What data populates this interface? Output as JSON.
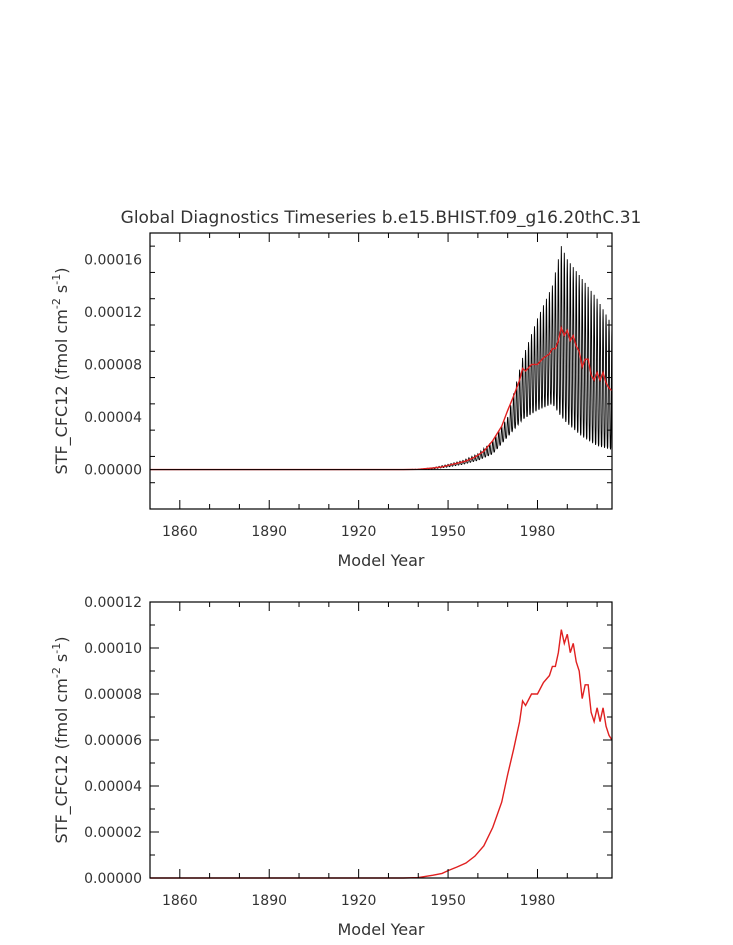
{
  "chart_data": [
    {
      "type": "line",
      "title": "Global Diagnostics Timeseries b.e15.BHIST.f09_g16.20thC.31",
      "xlabel": "Model Year",
      "ylabel": "STF_CFC12 (fmol cm^-2 s^-1)",
      "ylabel_parts": [
        "STF_CFC12 (fmol cm",
        "-2",
        " s",
        "-1",
        ")"
      ],
      "xlim": [
        1850,
        2005
      ],
      "ylim": [
        -3e-05,
        0.00018
      ],
      "xticks": [
        1860,
        1890,
        1920,
        1950,
        1980
      ],
      "xtick_labels": [
        "1860",
        "1890",
        "1920",
        "1950",
        "1980"
      ],
      "yticks": [
        0,
        4e-05,
        8e-05,
        0.00012,
        0.00016
      ],
      "ytick_labels": [
        "0.00000",
        "0.00004",
        "0.00008",
        "0.00012",
        "0.00016"
      ],
      "zero_line": true,
      "series": [
        {
          "kind": "monthly",
          "color": "#000000",
          "envelope": {
            "x": [
              1850,
              1935,
              1940,
              1945,
              1950,
              1955,
              1960,
              1965,
              1970,
              1975,
              1980,
              1985,
              1988,
              1990,
              1995,
              2000,
              2005
            ],
            "low": [
              0,
              0,
              0,
              5e-07,
              2e-06,
              4e-06,
              7e-06,
              1.2e-05,
              2.5e-05,
              3.8e-05,
              4.5e-05,
              5e-05,
              4e-05,
              3.5e-05,
              2.5e-05,
              1.8e-05,
              1.5e-05
            ],
            "high": [
              0,
              0,
              3e-07,
              1.5e-06,
              4e-06,
              7e-06,
              1.2e-05,
              2.2e-05,
              4e-05,
              8.5e-05,
              0.000115,
              0.00014,
              0.00017,
              0.00016,
              0.000145,
              0.00013,
              0.00011
            ]
          }
        },
        {
          "kind": "annual",
          "color": "#e02020",
          "x": [
            1850,
            1935,
            1940,
            1945,
            1948,
            1950,
            1953,
            1956,
            1959,
            1962,
            1965,
            1968,
            1970,
            1972,
            1974,
            1975,
            1976,
            1978,
            1980,
            1982,
            1984,
            1985,
            1986,
            1987,
            1988,
            1989,
            1990,
            1991,
            1992,
            1993,
            1994,
            1995,
            1996,
            1997,
            1998,
            1999,
            2000,
            2001,
            2002,
            2003,
            2004,
            2005
          ],
          "y": [
            0,
            0,
            2e-07,
            1.2e-06,
            2e-06,
            3.2e-06,
            4.8e-06,
            6.5e-06,
            9.5e-06,
            1.4e-05,
            2.2e-05,
            3.3e-05,
            4.5e-05,
            5.6e-05,
            6.8e-05,
            7.7e-05,
            7.5e-05,
            8e-05,
            8e-05,
            8.5e-05,
            8.8e-05,
            9.2e-05,
            9.2e-05,
            9.8e-05,
            0.000108,
            0.000102,
            0.000106,
            9.8e-05,
            0.000102,
            9.4e-05,
            9e-05,
            7.8e-05,
            8.4e-05,
            8.4e-05,
            7.2e-05,
            6.8e-05,
            7.4e-05,
            6.8e-05,
            7.4e-05,
            6.6e-05,
            6.2e-05,
            6e-05
          ]
        }
      ]
    },
    {
      "type": "line",
      "title": "",
      "xlabel": "Model Year",
      "ylabel": "STF_CFC12 (fmol cm^-2 s^-1)",
      "ylabel_parts": [
        "STF_CFC12 (fmol cm",
        "-2",
        " s",
        "-1",
        ")"
      ],
      "xlim": [
        1850,
        2005
      ],
      "ylim": [
        0,
        0.00012
      ],
      "xticks": [
        1860,
        1890,
        1920,
        1950,
        1980
      ],
      "xtick_labels": [
        "1860",
        "1890",
        "1920",
        "1950",
        "1980"
      ],
      "yticks": [
        0,
        2e-05,
        4e-05,
        6e-05,
        8e-05,
        0.0001,
        0.00012
      ],
      "ytick_labels": [
        "0.00000",
        "0.00002",
        "0.00004",
        "0.00006",
        "0.00008",
        "0.00010",
        "0.00012"
      ],
      "series": [
        {
          "kind": "annual",
          "color": "#e02020",
          "x": [
            1850,
            1935,
            1940,
            1945,
            1948,
            1950,
            1953,
            1956,
            1959,
            1962,
            1965,
            1968,
            1970,
            1972,
            1974,
            1975,
            1976,
            1978,
            1980,
            1982,
            1984,
            1985,
            1986,
            1987,
            1988,
            1989,
            1990,
            1991,
            1992,
            1993,
            1994,
            1995,
            1996,
            1997,
            1998,
            1999,
            2000,
            2001,
            2002,
            2003,
            2004,
            2005
          ],
          "y": [
            0,
            0,
            2e-07,
            1.2e-06,
            2e-06,
            3.2e-06,
            4.8e-06,
            6.5e-06,
            9.5e-06,
            1.4e-05,
            2.2e-05,
            3.3e-05,
            4.5e-05,
            5.6e-05,
            6.8e-05,
            7.7e-05,
            7.5e-05,
            8e-05,
            8e-05,
            8.5e-05,
            8.8e-05,
            9.2e-05,
            9.2e-05,
            9.8e-05,
            0.000108,
            0.000102,
            0.000106,
            9.8e-05,
            0.000102,
            9.4e-05,
            9e-05,
            7.8e-05,
            8.4e-05,
            8.4e-05,
            7.2e-05,
            6.8e-05,
            7.4e-05,
            6.8e-05,
            7.4e-05,
            6.6e-05,
            6.2e-05,
            6e-05
          ]
        }
      ]
    }
  ]
}
